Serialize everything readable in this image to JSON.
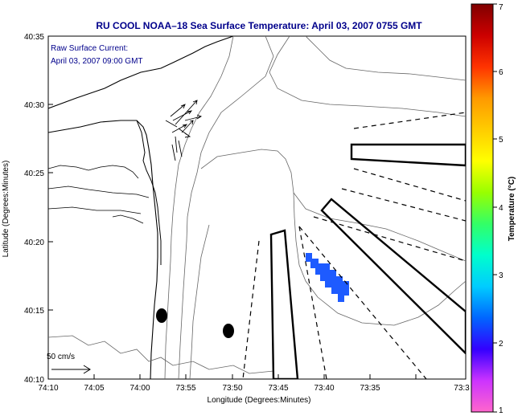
{
  "figure": {
    "title": "RU COOL  NOAA–18  Sea Surface Temperature:  April 03, 2007 0755 GMT",
    "current_note_line1": "Raw Surface Current:",
    "current_note_line2": "April 03, 2007 09:00 GMT",
    "scale_label": "50 cm/s",
    "xlabel": "Longitude (Degrees:Minutes)",
    "ylabel": "Latitude (Degrees:Minutes)"
  },
  "axes": {
    "x_ticks": [
      "74:10",
      "74:05",
      "74:00",
      "73:55",
      "73:50",
      "73:45",
      "73:40",
      "73:35",
      "73:3"
    ],
    "y_ticks": [
      "40:35",
      "40:30",
      "40:25",
      "40:20",
      "40:15",
      "40:10"
    ]
  },
  "colorbar": {
    "label": "Temperature (°C)",
    "ticks": [
      "7",
      "6",
      "5",
      "4",
      "3",
      "2",
      "1"
    ],
    "range": [
      1,
      7
    ],
    "colors": [
      "#ff66cc",
      "#cc33ff",
      "#3300ff",
      "#0066ff",
      "#00ccff",
      "#00ffcc",
      "#33ff66",
      "#99ff00",
      "#ffff00",
      "#ffcc00",
      "#ff9900",
      "#ff3300",
      "#cc0000",
      "#800000"
    ]
  },
  "sst_patch": {
    "color": "#1e5bff",
    "temperature_c": 2
  },
  "symbols": {
    "buoy_count": 2,
    "buoy_color": "#000000"
  }
}
